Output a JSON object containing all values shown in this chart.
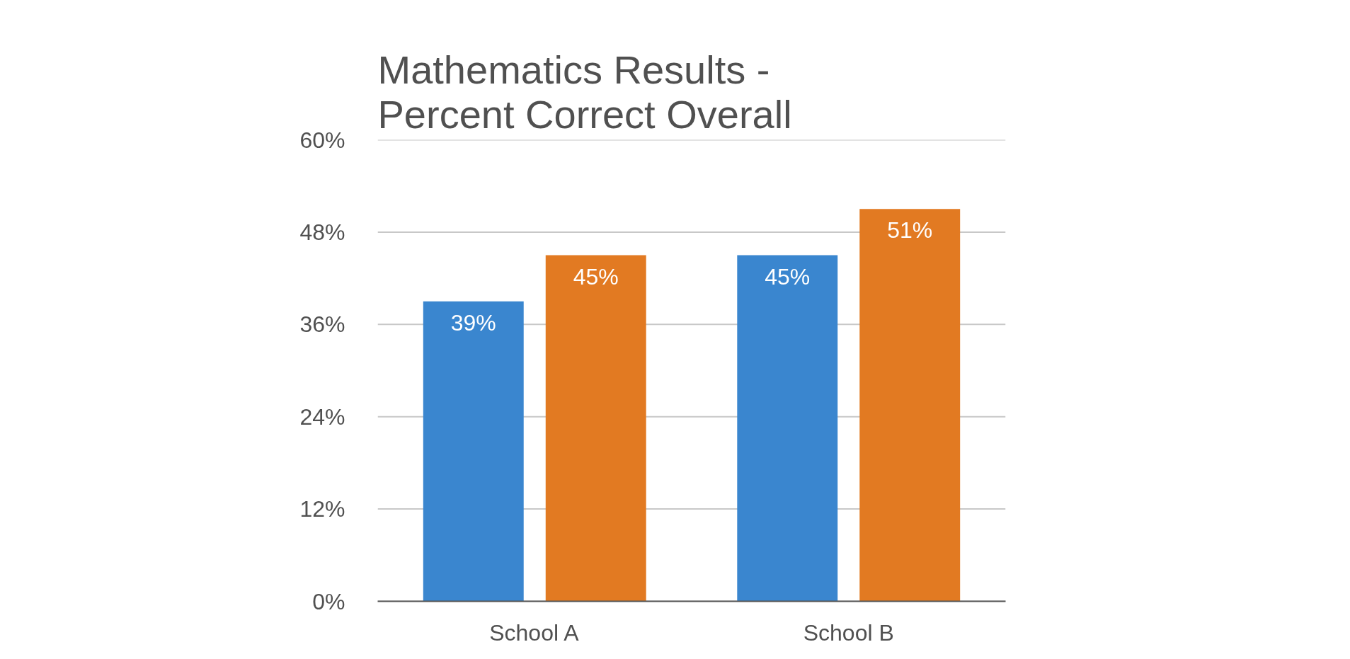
{
  "chart_data": {
    "type": "bar",
    "title": "Mathematics Results - Percent Correct Overall",
    "categories": [
      "School A",
      "School B"
    ],
    "series": [
      {
        "color": "#3a86cf",
        "values": [
          39,
          45
        ],
        "value_labels": [
          "39%",
          "45%"
        ]
      },
      {
        "color": "#e27a22",
        "values": [
          45,
          51
        ],
        "value_labels": [
          "45%",
          "51%"
        ]
      }
    ],
    "ylim": [
      0,
      60
    ],
    "yticks": [
      {
        "value": 0,
        "label": "0%"
      },
      {
        "value": 12,
        "label": "12%"
      },
      {
        "value": 24,
        "label": "24%"
      },
      {
        "value": 36,
        "label": "36%"
      },
      {
        "value": 48,
        "label": "48%"
      },
      {
        "value": 60,
        "label": "60%"
      }
    ],
    "grid": "y"
  }
}
